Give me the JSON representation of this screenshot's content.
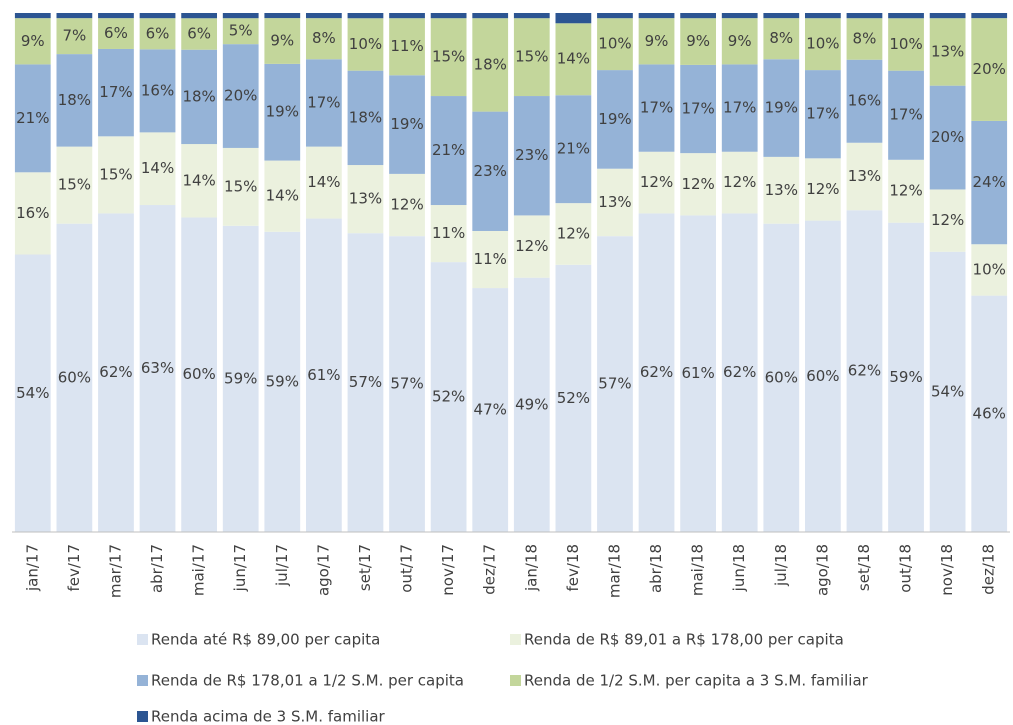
{
  "chart_data": {
    "type": "stacked_bar_100",
    "categories": [
      "jan/17",
      "fev/17",
      "mar/17",
      "abr/17",
      "mai/17",
      "jun/17",
      "jul/17",
      "ago/17",
      "set/17",
      "out/17",
      "nov/17",
      "dez/17",
      "jan/18",
      "fev/18",
      "mar/18",
      "abr/18",
      "mai/18",
      "jun/18",
      "jul/18",
      "ago/18",
      "set/18",
      "out/18",
      "nov/18",
      "dez/18"
    ],
    "series": [
      {
        "name": "Renda até R$ 89,00 per capita",
        "color": "#dbe4f1",
        "values": [
          54,
          60,
          62,
          63,
          60,
          59,
          59,
          61,
          57,
          57,
          52,
          47,
          49,
          52,
          57,
          62,
          61,
          62,
          60,
          60,
          62,
          59,
          54,
          46
        ],
        "value_labels": [
          "54%",
          "60%",
          "62%",
          "63%",
          "60%",
          "59%",
          "59%",
          "61%",
          "57%",
          "57%",
          "52%",
          "47%",
          "49%",
          "52%",
          "57%",
          "62%",
          "61%",
          "62%",
          "60%",
          "60%",
          "62%",
          "59%",
          "54%",
          "46%"
        ]
      },
      {
        "name": "Renda de R$ 89,01 a R$ 178,00 per capita",
        "color": "#ebf1de",
        "values": [
          16,
          15,
          15,
          14,
          14,
          15,
          14,
          14,
          13,
          12,
          11,
          11,
          12,
          12,
          13,
          12,
          12,
          12,
          13,
          12,
          13,
          12,
          12,
          10
        ],
        "value_labels": [
          "16%",
          "15%",
          "15%",
          "14%",
          "14%",
          "15%",
          "14%",
          "14%",
          "13%",
          "12%",
          "11%",
          "11%",
          "12%",
          "12%",
          "13%",
          "12%",
          "12%",
          "12%",
          "13%",
          "12%",
          "13%",
          "12%",
          "12%",
          "10%"
        ]
      },
      {
        "name": "Renda de R$ 178,01 a 1/2 S.M. per capita",
        "color": "#95b3d7",
        "values": [
          21,
          18,
          17,
          16,
          18,
          20,
          19,
          17,
          18,
          19,
          21,
          23,
          23,
          21,
          19,
          17,
          17,
          17,
          19,
          17,
          16,
          17,
          20,
          24
        ],
        "value_labels": [
          "21%",
          "18%",
          "17%",
          "16%",
          "18%",
          "20%",
          "19%",
          "17%",
          "18%",
          "19%",
          "21%",
          "23%",
          "23%",
          "21%",
          "19%",
          "17%",
          "17%",
          "17%",
          "19%",
          "17%",
          "16%",
          "17%",
          "20%",
          "24%"
        ]
      },
      {
        "name": "Renda de 1/2 S.M. per capita a 3 S.M. familiar",
        "color": "#c3d69b",
        "values": [
          9,
          7,
          6,
          6,
          6,
          5,
          9,
          8,
          10,
          11,
          15,
          18,
          15,
          14,
          10,
          9,
          9,
          9,
          8,
          10,
          8,
          10,
          13,
          20
        ],
        "value_labels": [
          "9%",
          "7%",
          "6%",
          "6%",
          "6%",
          "5%",
          "9%",
          "8%",
          "10%",
          "11%",
          "15%",
          "18%",
          "15%",
          "14%",
          "10%",
          "9%",
          "9%",
          "9%",
          "8%",
          "10%",
          "8%",
          "10%",
          "13%",
          "20%"
        ]
      },
      {
        "name": "Renda acima de 3 S.M. familiar",
        "color": "#2c5592",
        "values": [
          1,
          1,
          1,
          1,
          1,
          1,
          1,
          1,
          1,
          1,
          1,
          1,
          1,
          2,
          1,
          1,
          1,
          1,
          1,
          1,
          1,
          1,
          1,
          1
        ]
      }
    ]
  }
}
